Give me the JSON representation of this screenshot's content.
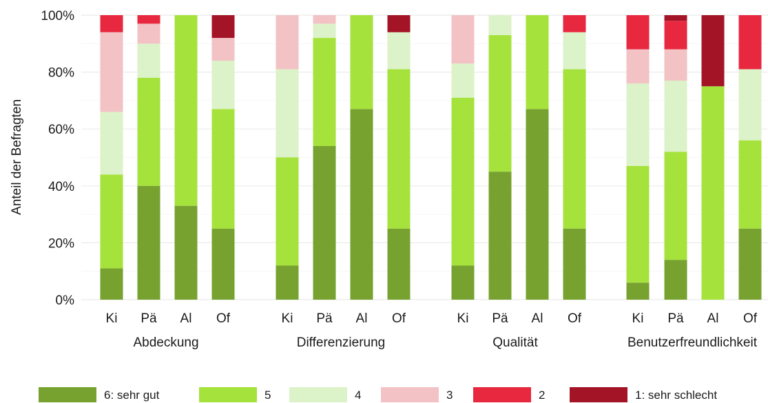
{
  "chart_data": {
    "type": "bar",
    "stacked": true,
    "ylabel": "Anteil der Befragten",
    "xlabel": "",
    "ylim": [
      0,
      100
    ],
    "y_ticks": [
      "0%",
      "20%",
      "40%",
      "60%",
      "80%",
      "100%"
    ],
    "grid": true,
    "legend_position": "bottom",
    "groups": [
      {
        "name": "Abdeckung",
        "categories": [
          "Ki",
          "Pä",
          "Al",
          "Of"
        ],
        "series": {
          "6: sehr gut": [
            11,
            40,
            33,
            25
          ],
          "5": [
            33,
            38,
            67,
            42
          ],
          "4": [
            22,
            12,
            0,
            17
          ],
          "3": [
            28,
            7,
            0,
            8
          ],
          "2": [
            6,
            3,
            0,
            0
          ],
          "1: sehr schlecht": [
            0,
            0,
            0,
            8
          ]
        }
      },
      {
        "name": "Differenzierung",
        "categories": [
          "Ki",
          "Pä",
          "Al",
          "Of"
        ],
        "series": {
          "6: sehr gut": [
            12,
            54,
            67,
            25
          ],
          "5": [
            38,
            38,
            33,
            56
          ],
          "4": [
            31,
            5,
            0,
            13
          ],
          "3": [
            19,
            3,
            0,
            0
          ],
          "2": [
            0,
            0,
            0,
            0
          ],
          "1: sehr schlecht": [
            0,
            0,
            0,
            6
          ]
        }
      },
      {
        "name": "Qualität",
        "categories": [
          "Ki",
          "Pä",
          "Al",
          "Of"
        ],
        "series": {
          "6: sehr gut": [
            12,
            45,
            67,
            25
          ],
          "5": [
            59,
            48,
            33,
            56
          ],
          "4": [
            12,
            7,
            0,
            13
          ],
          "3": [
            17,
            0,
            0,
            0
          ],
          "2": [
            0,
            0,
            0,
            6
          ],
          "1: sehr schlecht": [
            0,
            0,
            0,
            0
          ]
        }
      },
      {
        "name": "Benutzerfreundlichkeit",
        "categories": [
          "Ki",
          "Pä",
          "Al",
          "Of"
        ],
        "series": {
          "6: sehr gut": [
            6,
            14,
            0,
            25
          ],
          "5": [
            41,
            38,
            75,
            31
          ],
          "4": [
            29,
            25,
            0,
            25
          ],
          "3": [
            12,
            11,
            0,
            0
          ],
          "2": [
            12,
            10,
            0,
            19
          ],
          "1: sehr schlecht": [
            0,
            2,
            25,
            0
          ]
        }
      }
    ],
    "legend": [
      {
        "name": "6: sehr gut",
        "color": "#77a22f"
      },
      {
        "name": "5",
        "color": "#a6e23c"
      },
      {
        "name": "4",
        "color": "#dcf2c8"
      },
      {
        "name": "3",
        "color": "#f2c2c5"
      },
      {
        "name": "2",
        "color": "#e8283f"
      },
      {
        "name": "1: sehr schlecht",
        "color": "#a31427"
      }
    ]
  }
}
